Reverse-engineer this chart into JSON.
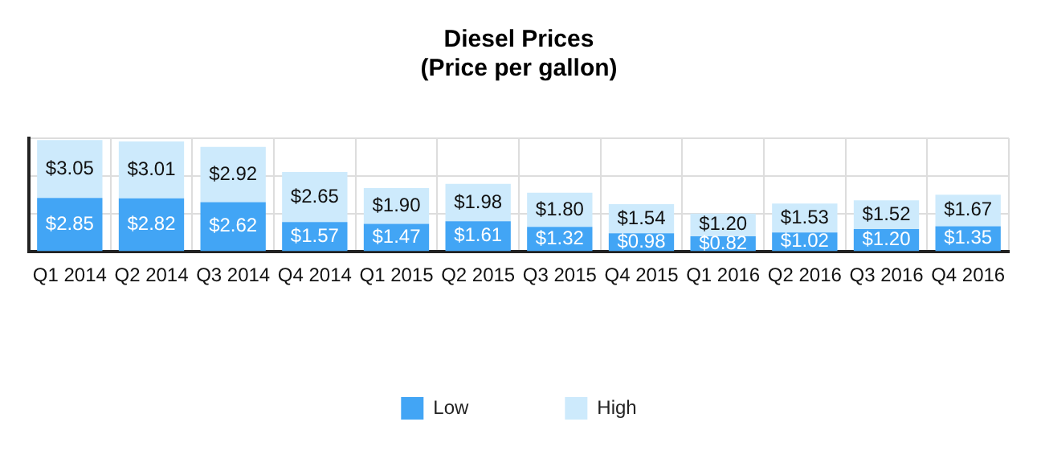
{
  "chart_data": {
    "type": "bar",
    "title": "Diesel Prices",
    "subtitle": "(Price per gallon)",
    "categories": [
      "Q1 2014",
      "Q2 2014",
      "Q3 2014",
      "Q4 2014",
      "Q1 2015",
      "Q2 2015",
      "Q3 2015",
      "Q4 2015",
      "Q1 2016",
      "Q2 2016",
      "Q3 2016",
      "Q4 2016"
    ],
    "series": [
      {
        "name": "Low",
        "color": "#42a5f5",
        "values": [
          2.85,
          2.82,
          2.62,
          1.57,
          1.47,
          1.61,
          1.32,
          0.98,
          0.82,
          1.02,
          1.2,
          1.35
        ],
        "value_labels": [
          "$2.85",
          "$2.82",
          "$2.62",
          "$1.57",
          "$1.47",
          "$1.61",
          "$1.32",
          "$0.98",
          "$0.82",
          "$1.02",
          "$1.20",
          "$1.35"
        ]
      },
      {
        "name": "High",
        "color": "#cdeafc",
        "values": [
          3.05,
          3.01,
          2.92,
          2.65,
          1.9,
          1.98,
          1.8,
          1.54,
          1.2,
          1.53,
          1.52,
          1.67
        ],
        "value_labels": [
          "$3.05",
          "$3.01",
          "$2.92",
          "$2.65",
          "$1.90",
          "$1.98",
          "$1.80",
          "$1.54",
          "$1.20",
          "$1.53",
          "$1.52",
          "$1.67"
        ]
      }
    ],
    "stacked": true,
    "tick_labels": "x",
    "grid": true,
    "legend": "bottom"
  }
}
